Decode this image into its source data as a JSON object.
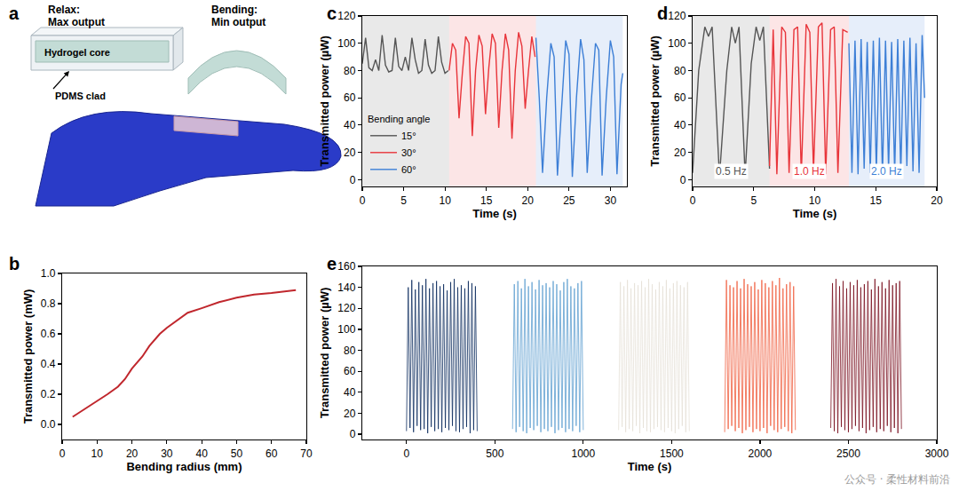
{
  "illustration": {
    "panel": "a",
    "relax": "Relax:",
    "relax_output": "Max output",
    "bending": "Bending:",
    "bending_output": "Min output",
    "core": "Hydrogel core",
    "clad": "PDMS clad"
  },
  "watermark": "公众号 · 柔性材料前沿",
  "chart_data": [
    {
      "panel": "b",
      "type": "line",
      "x_label": "Bending radius (mm)",
      "y_label": "Transmitted power (mW)",
      "x": [
        3,
        5,
        8,
        10,
        13,
        16,
        18,
        20,
        23,
        25,
        28,
        30,
        33,
        36,
        40,
        45,
        50,
        55,
        60,
        64,
        67
      ],
      "values": [
        0.05,
        0.08,
        0.12,
        0.15,
        0.2,
        0.25,
        0.3,
        0.37,
        0.45,
        0.52,
        0.6,
        0.64,
        0.69,
        0.74,
        0.77,
        0.81,
        0.84,
        0.86,
        0.87,
        0.88,
        0.89
      ],
      "color": "#c0272d",
      "xlim": [
        0,
        70
      ],
      "xticks": [
        0,
        10,
        20,
        30,
        40,
        50,
        60,
        70
      ],
      "ylim": [
        -0.1,
        1.0
      ],
      "yticks": [
        {
          "value": 0,
          "label": "0.0"
        },
        0.2,
        0.4,
        0.6,
        0.8,
        {
          "value": 1,
          "label": "1.0"
        }
      ],
      "grid": false
    },
    {
      "panel": "c",
      "type": "line",
      "x_label": "Time (s)",
      "y_label": "Transmitted power (µW)",
      "legend": "lower left",
      "legend_title": "Bending angle",
      "series": [
        {
          "name": "15°",
          "color": "#555555",
          "x": [
            0,
            0.4,
            0.8,
            1.2,
            1.6,
            2.0,
            2.4,
            2.8,
            3.2,
            3.6,
            4.0,
            4.4,
            4.8,
            5.2,
            5.6,
            6.0,
            6.4,
            6.8,
            7.2,
            7.6,
            8.0,
            8.4,
            8.8,
            9.2,
            9.6,
            10.0,
            10.4
          ],
          "values": [
            85,
            104,
            82,
            80,
            88,
            80,
            106,
            84,
            79,
            80,
            104,
            83,
            80,
            90,
            80,
            104,
            88,
            78,
            80,
            103,
            84,
            78,
            80,
            105,
            86,
            78,
            80
          ]
        },
        {
          "name": "30°",
          "color": "#e8343a",
          "x": [
            10.5,
            10.9,
            11.3,
            11.7,
            12.1,
            12.5,
            12.9,
            13.3,
            13.7,
            14.1,
            14.5,
            14.9,
            15.3,
            15.7,
            16.1,
            16.5,
            16.9,
            17.3,
            17.7,
            18.1,
            18.5,
            18.9,
            19.3,
            19.7,
            20.1,
            20.5,
            20.9
          ],
          "values": [
            80,
            100,
            95,
            45,
            78,
            105,
            100,
            32,
            80,
            106,
            98,
            48,
            82,
            107,
            100,
            38,
            80,
            107,
            95,
            30,
            80,
            108,
            98,
            52,
            80,
            105,
            90
          ]
        },
        {
          "name": "60°",
          "color": "#3d7fd6",
          "x": [
            21,
            21.4,
            21.8,
            22.3,
            22.8,
            23.2,
            23.6,
            24.1,
            24.6,
            25.0,
            25.4,
            25.9,
            26.4,
            26.8,
            27.2,
            27.7,
            28.2,
            28.6,
            29.0,
            29.5,
            30.0,
            30.4,
            30.8,
            31.3,
            31.5
          ],
          "values": [
            104,
            60,
            5,
            60,
            100,
            90,
            3,
            55,
            102,
            92,
            2,
            60,
            103,
            88,
            5,
            58,
            100,
            95,
            3,
            60,
            102,
            90,
            4,
            70,
            78
          ]
        }
      ],
      "xlim": [
        0,
        32
      ],
      "xticks": [
        0,
        5,
        10,
        15,
        20,
        25,
        30
      ],
      "ylim": [
        -5,
        120
      ],
      "yticks": [
        0,
        20,
        40,
        60,
        80,
        100,
        120
      ],
      "grid": false
    },
    {
      "panel": "d",
      "type": "line",
      "x_label": "Time (s)",
      "y_label": "Transmitted power (µW)",
      "series": [
        {
          "name": "0.5 Hz",
          "color": "#555555",
          "x": [
            0,
            0.5,
            1.0,
            1.3,
            1.6,
            2.2,
            2.8,
            3.2,
            3.5,
            3.8,
            4.3,
            4.8,
            5.2,
            5.5,
            5.8,
            6.3
          ],
          "values": [
            5,
            80,
            112,
            105,
            112,
            2,
            80,
            112,
            100,
            112,
            3,
            85,
            112,
            102,
            112,
            8
          ]
        },
        {
          "name": "1.0 Hz",
          "color": "#e8343a",
          "x": [
            6.3,
            6.6,
            6.9,
            7.3,
            7.6,
            7.9,
            8.3,
            8.6,
            8.9,
            9.3,
            9.6,
            9.9,
            10.3,
            10.6,
            10.9,
            11.3,
            11.6,
            11.9,
            12.3,
            12.7
          ],
          "values": [
            10,
            110,
            4,
            112,
            108,
            5,
            110,
            112,
            3,
            114,
            108,
            6,
            112,
            115,
            4,
            110,
            112,
            5,
            110,
            108
          ]
        },
        {
          "name": "2.0 Hz",
          "color": "#3d7fd6",
          "x": [
            12.8,
            13.05,
            13.3,
            13.55,
            13.8,
            14.05,
            14.3,
            14.55,
            14.8,
            15.05,
            15.3,
            15.55,
            15.8,
            16.05,
            16.3,
            16.55,
            16.8,
            17.05,
            17.3,
            17.55,
            17.8,
            18.05,
            18.3,
            18.55,
            18.8,
            19.0
          ],
          "values": [
            100,
            5,
            102,
            4,
            103,
            8,
            101,
            5,
            102,
            6,
            104,
            3,
            102,
            7,
            101,
            5,
            103,
            4,
            102,
            10,
            104,
            6,
            100,
            5,
            106,
            60
          ]
        }
      ],
      "xlim": [
        0,
        20
      ],
      "xticks": [
        0,
        5,
        10,
        15,
        20
      ],
      "ylim": [
        -5,
        120
      ],
      "yticks": [
        0,
        20,
        40,
        60,
        80,
        100,
        120
      ],
      "grid": false
    },
    {
      "panel": "e",
      "type": "line",
      "x_label": "Time (s)",
      "y_label": "Transmitted power (µW)",
      "series": [
        {
          "color": "#0d2c5e",
          "x": [
            0,
            10,
            20,
            30,
            40,
            50,
            60,
            70,
            80,
            90,
            100,
            110,
            120,
            130,
            140,
            150,
            160,
            170,
            180,
            190,
            200,
            210,
            220,
            230,
            240,
            250,
            260,
            270,
            280,
            290,
            300,
            310,
            320,
            330,
            340,
            350,
            360,
            370,
            380,
            390,
            400
          ],
          "values": [
            3,
            140,
            6,
            147,
            2,
            138,
            8,
            145,
            4,
            142,
            5,
            148,
            1,
            139,
            7,
            144,
            3,
            146,
            5,
            141,
            2,
            143,
            6,
            137,
            4,
            145,
            8,
            148,
            3,
            140,
            2,
            142,
            5,
            139,
            7,
            146,
            1,
            144,
            4,
            141,
            3
          ]
        },
        {
          "color": "#5fa0d0",
          "x": [
            600,
            610,
            620,
            630,
            640,
            650,
            660,
            670,
            680,
            690,
            700,
            710,
            720,
            730,
            740,
            750,
            760,
            770,
            780,
            790,
            800,
            810,
            820,
            830,
            840,
            850,
            860,
            870,
            880,
            890,
            900,
            910,
            920,
            930,
            940,
            950,
            960,
            970,
            980,
            990,
            1000
          ],
          "values": [
            5,
            143,
            2,
            146,
            7,
            139,
            3,
            148,
            1,
            141,
            6,
            145,
            4,
            138,
            8,
            147,
            2,
            142,
            5,
            144,
            3,
            140,
            7,
            146,
            1,
            143,
            4,
            137,
            6,
            145,
            2,
            148,
            5,
            141,
            3,
            139,
            8,
            144,
            2,
            146,
            4
          ]
        },
        {
          "color": "#e6e1d8",
          "x": [
            1200,
            1210,
            1220,
            1230,
            1240,
            1250,
            1260,
            1270,
            1280,
            1290,
            1300,
            1310,
            1320,
            1330,
            1340,
            1350,
            1360,
            1370,
            1380,
            1390,
            1400,
            1410,
            1420,
            1430,
            1440,
            1450,
            1460,
            1470,
            1480,
            1490,
            1500,
            1510,
            1520,
            1530,
            1540,
            1550,
            1560,
            1570,
            1580,
            1590,
            1600
          ],
          "values": [
            4,
            145,
            7,
            141,
            2,
            147,
            5,
            139,
            3,
            144,
            8,
            142,
            1,
            146,
            6,
            140,
            3,
            148,
            2,
            143,
            5,
            138,
            7,
            145,
            4,
            141,
            2,
            147,
            6,
            139,
            3,
            144,
            1,
            146,
            5,
            142,
            8,
            140,
            2,
            145,
            3
          ]
        },
        {
          "color": "#f06040",
          "x": [
            1800,
            1810,
            1820,
            1830,
            1840,
            1850,
            1860,
            1870,
            1880,
            1890,
            1900,
            1910,
            1920,
            1930,
            1940,
            1950,
            1960,
            1970,
            1980,
            1990,
            2000,
            2010,
            2020,
            2030,
            2040,
            2050,
            2060,
            2070,
            2080,
            2090,
            2100,
            2110,
            2120,
            2130,
            2140,
            2150,
            2160,
            2170,
            2180,
            2190,
            2200
          ],
          "values": [
            2,
            147,
            5,
            142,
            8,
            140,
            3,
            146,
            6,
            139,
            1,
            148,
            4,
            143,
            7,
            141,
            2,
            145,
            5,
            138,
            3,
            147,
            6,
            144,
            1,
            140,
            8,
            146,
            4,
            142,
            2,
            149,
            5,
            139,
            7,
            143,
            3,
            145,
            1,
            141,
            4
          ]
        },
        {
          "color": "#7a1020",
          "x": [
            2400,
            2410,
            2420,
            2430,
            2440,
            2450,
            2460,
            2470,
            2480,
            2490,
            2500,
            2510,
            2520,
            2530,
            2540,
            2550,
            2560,
            2570,
            2580,
            2590,
            2600,
            2610,
            2620,
            2630,
            2640,
            2650,
            2660,
            2670,
            2680,
            2690,
            2700,
            2710,
            2720,
            2730,
            2740,
            2750,
            2760,
            2770,
            2780,
            2790,
            2800
          ],
          "values": [
            6,
            144,
            3,
            148,
            1,
            141,
            7,
            146,
            4,
            139,
            2,
            145,
            5,
            142,
            8,
            147,
            3,
            140,
            6,
            143,
            1,
            146,
            4,
            138,
            7,
            148,
            2,
            141,
            5,
            145,
            3,
            139,
            8,
            147,
            2,
            142,
            6,
            144,
            1,
            146,
            5
          ]
        }
      ],
      "xlim": [
        -250,
        3000
      ],
      "xticks": [
        0,
        500,
        1000,
        1500,
        2000,
        2500,
        3000
      ],
      "ylim": [
        -5,
        160
      ],
      "yticks": [
        0,
        20,
        40,
        60,
        80,
        100,
        120,
        140,
        160
      ],
      "grid": false
    }
  ]
}
